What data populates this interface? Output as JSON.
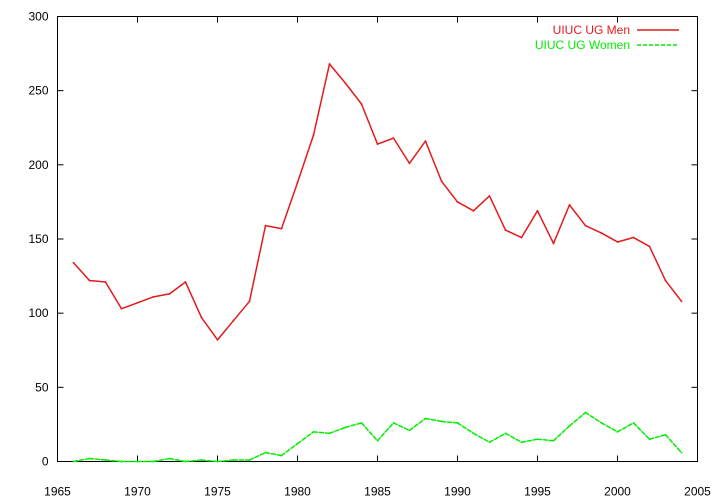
{
  "chart_data": {
    "type": "line",
    "title": "",
    "xlabel": "",
    "ylabel": "",
    "xlim": [
      1965,
      2005
    ],
    "ylim": [
      0,
      300
    ],
    "xticks": [
      1965,
      1970,
      1975,
      1980,
      1985,
      1990,
      1995,
      2000,
      2005
    ],
    "yticks": [
      0,
      50,
      100,
      150,
      200,
      250,
      300
    ],
    "grid": false,
    "legend_position": "top-right",
    "x": [
      1966,
      1967,
      1968,
      1969,
      1970,
      1971,
      1972,
      1973,
      1974,
      1975,
      1976,
      1977,
      1978,
      1979,
      1980,
      1981,
      1982,
      1983,
      1984,
      1985,
      1986,
      1987,
      1988,
      1989,
      1990,
      1991,
      1992,
      1993,
      1994,
      1995,
      1996,
      1997,
      1998,
      1999,
      2000,
      2001,
      2002,
      2003,
      2004
    ],
    "series": [
      {
        "name": "UIUC UG Men",
        "color": "#e41a1c",
        "dash": "solid",
        "values": [
          134,
          122,
          121,
          103,
          107,
          111,
          113,
          121,
          97,
          82,
          95,
          108,
          159,
          157,
          188,
          220,
          268,
          255,
          241,
          214,
          218,
          201,
          216,
          189,
          175,
          169,
          179,
          156,
          151,
          169,
          147,
          173,
          159,
          154,
          148,
          151,
          145,
          122,
          108
        ]
      },
      {
        "name": "UIUC UG Women",
        "color": "#00ee00",
        "dash": "dashed",
        "values": [
          0,
          2,
          1,
          0,
          0,
          0,
          2,
          0,
          1,
          0,
          1,
          1,
          6,
          4,
          12,
          20,
          19,
          23,
          26,
          14,
          26,
          21,
          29,
          27,
          26,
          19,
          13,
          19,
          13,
          15,
          14,
          24,
          33,
          26,
          20,
          26,
          15,
          18,
          6
        ]
      }
    ]
  }
}
